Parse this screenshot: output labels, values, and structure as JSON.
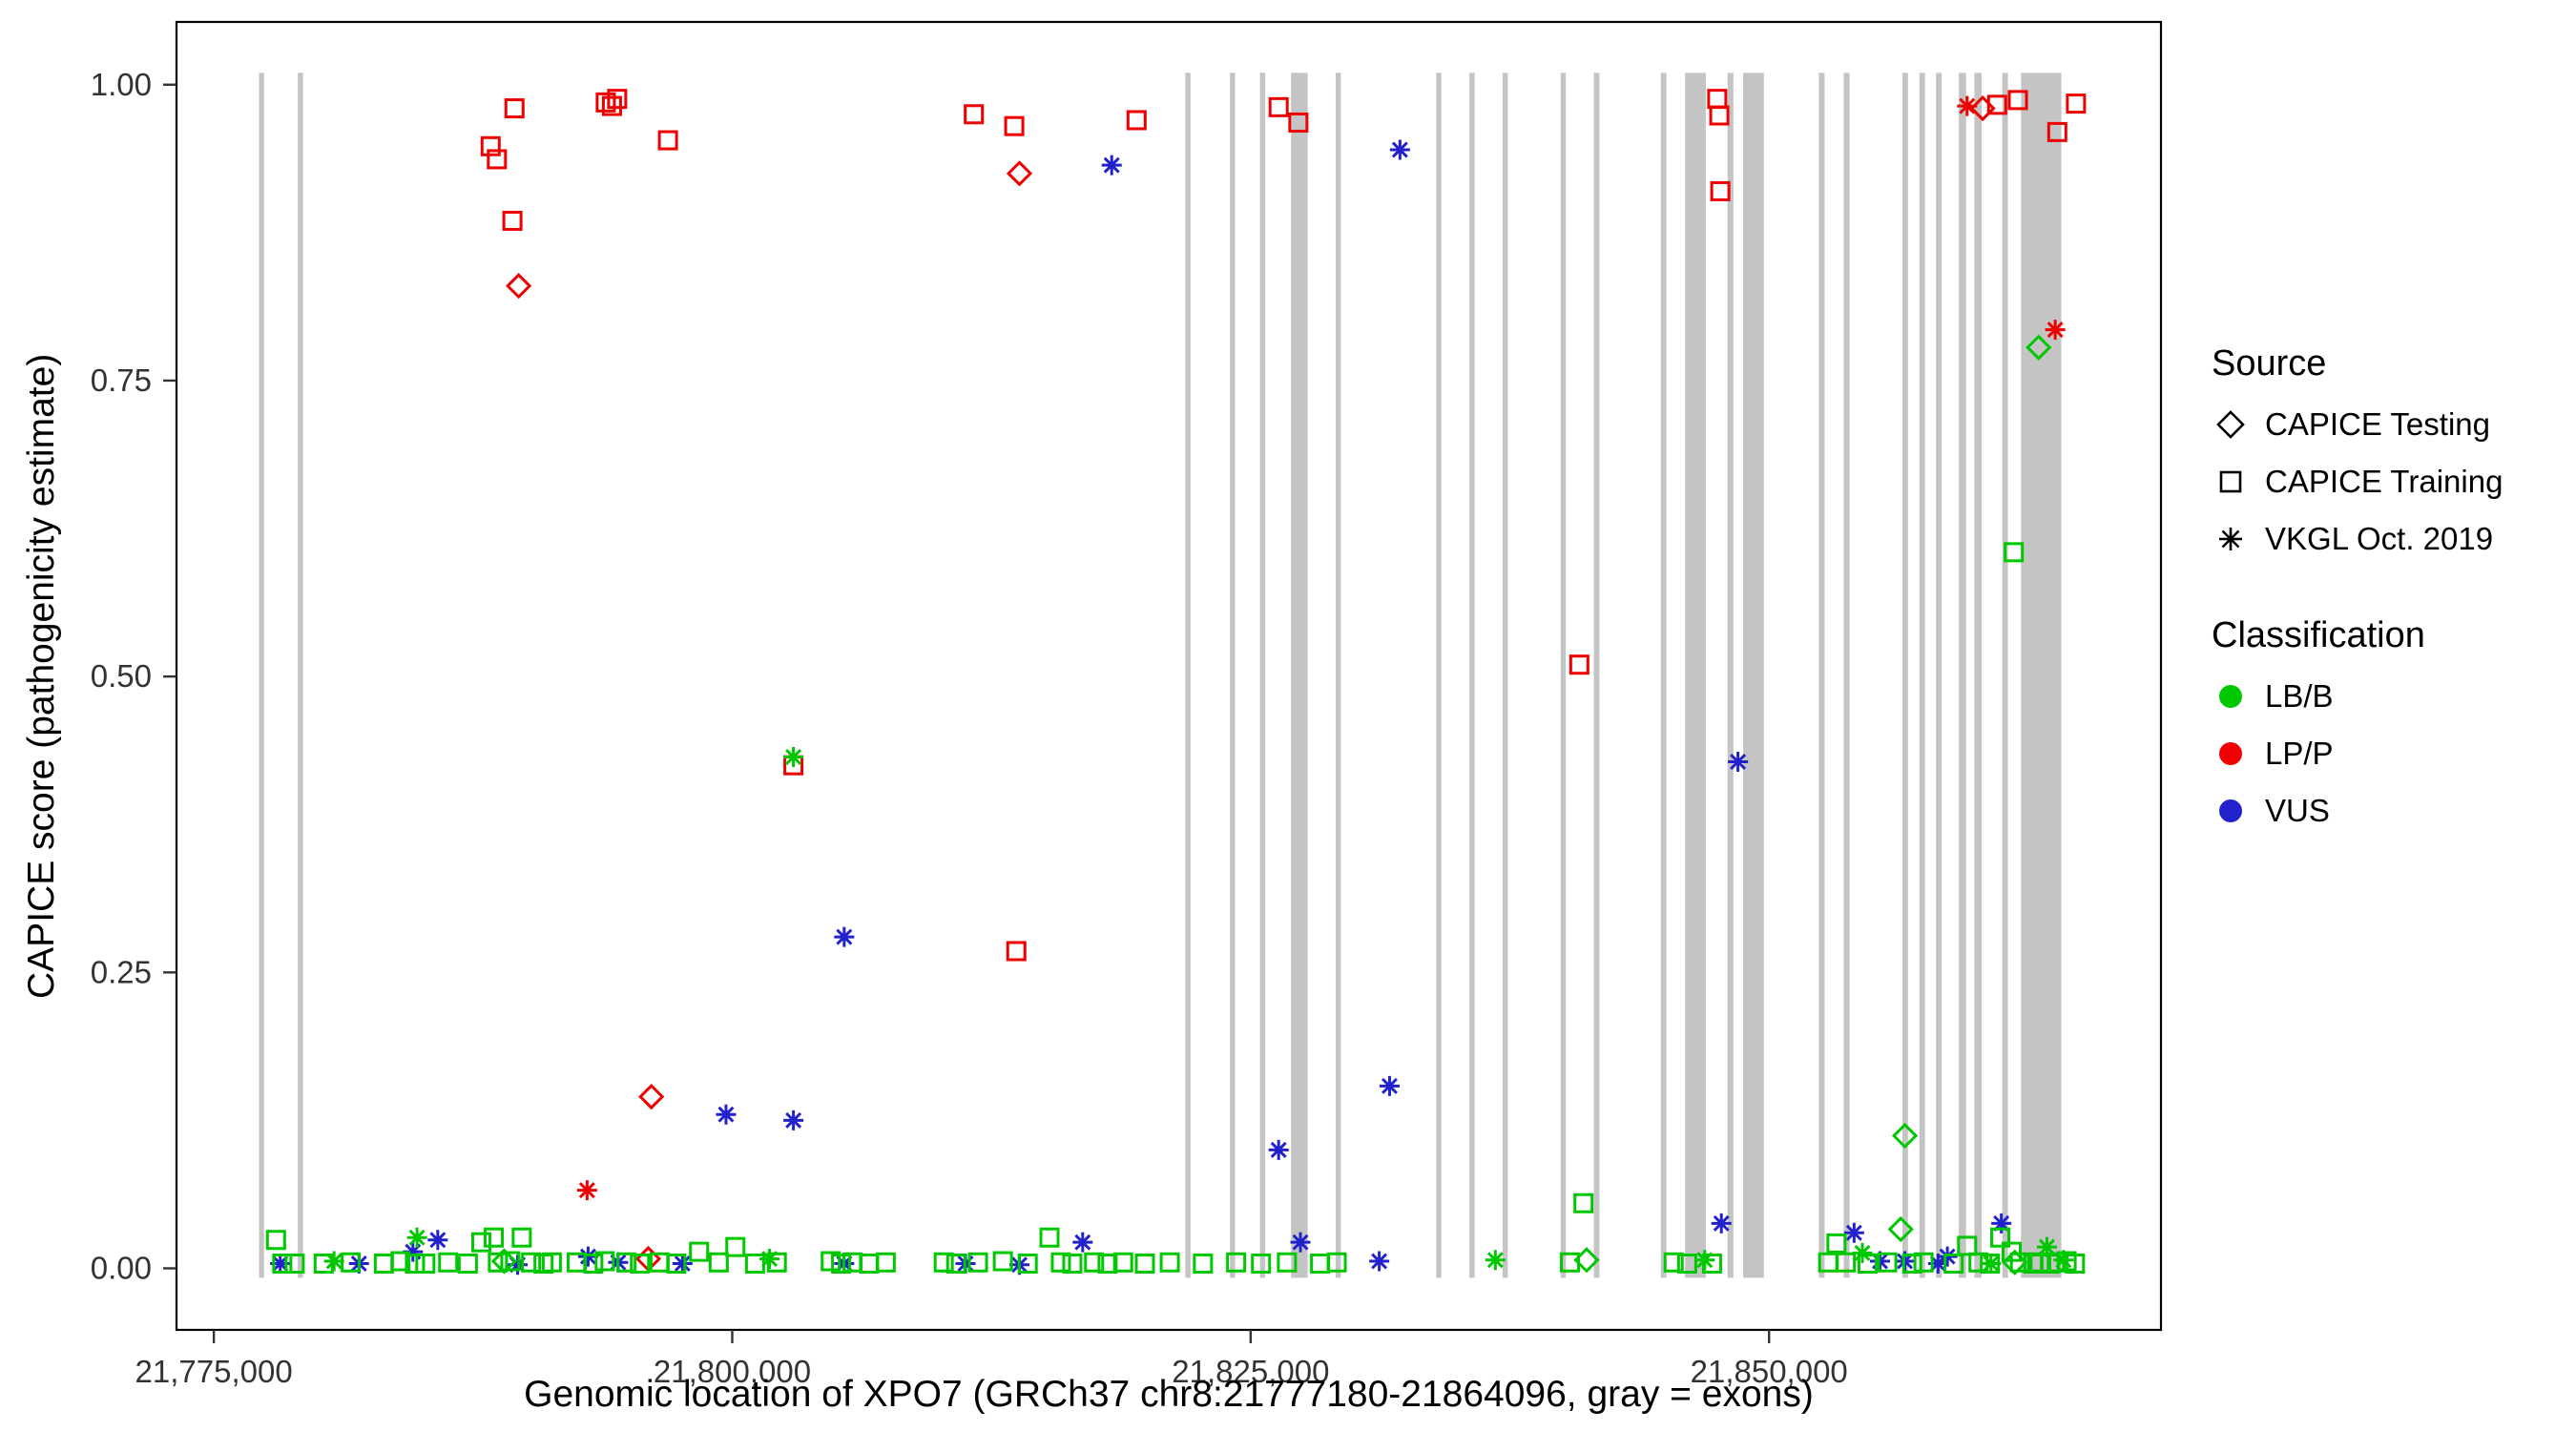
{
  "chart_data": {
    "type": "scatter",
    "title": "",
    "xlabel": "Genomic location of XPO7 (GRCh37 chr8:21777180-21864096, gray = exons)",
    "ylabel": "CAPICE score (pathogenicity estimate)",
    "xlim": [
      21773200,
      21868900
    ],
    "ylim": [
      -0.052,
      1.053
    ],
    "grid": false,
    "x_ticks": [
      {
        "value": 21775000,
        "label": "21,775,000"
      },
      {
        "value": 21800000,
        "label": "21,800,000"
      },
      {
        "value": 21825000,
        "label": "21,825,000"
      },
      {
        "value": 21850000,
        "label": "21,850,000"
      }
    ],
    "y_ticks": [
      {
        "value": 0.0,
        "label": "0.00"
      },
      {
        "value": 0.25,
        "label": "0.25"
      },
      {
        "value": 0.5,
        "label": "0.50"
      },
      {
        "value": 0.75,
        "label": "0.75"
      },
      {
        "value": 1.0,
        "label": "1.00"
      }
    ],
    "colors": {
      "exon": "#C4C4C4",
      "panel_border": "#000000",
      "tick": "#333333"
    },
    "exon_band": {
      "ymin": -0.008,
      "ymax": 1.01
    },
    "exons": [
      [
        21777180,
        21777420
      ],
      [
        21779050,
        21779300
      ],
      [
        21821850,
        21822100
      ],
      [
        21824000,
        21824250
      ],
      [
        21825450,
        21825700
      ],
      [
        21826950,
        21827750
      ],
      [
        21829100,
        21829350
      ],
      [
        21833950,
        21834200
      ],
      [
        21835550,
        21835800
      ],
      [
        21837150,
        21837400
      ],
      [
        21839950,
        21840200
      ],
      [
        21841550,
        21841820
      ],
      [
        21844780,
        21845050
      ],
      [
        21845950,
        21846950
      ],
      [
        21848000,
        21848280
      ],
      [
        21848750,
        21849750
      ],
      [
        21852400,
        21852680
      ],
      [
        21853600,
        21853880
      ],
      [
        21856430,
        21856700
      ],
      [
        21857250,
        21857520
      ],
      [
        21858050,
        21858320
      ],
      [
        21859150,
        21859500
      ],
      [
        21859900,
        21860250
      ],
      [
        21861250,
        21861520
      ],
      [
        21862150,
        21864096
      ]
    ],
    "legend": {
      "source": {
        "title": "Source",
        "items": [
          {
            "label": "CAPICE Testing",
            "shape": "diamond"
          },
          {
            "label": "CAPICE Training",
            "shape": "square"
          },
          {
            "label": "VKGL Oct. 2019",
            "shape": "asterisk"
          }
        ]
      },
      "classification": {
        "title": "Classification",
        "items": [
          {
            "label": "LB/B",
            "color": "#00C800"
          },
          {
            "label": "LP/P",
            "color": "#EE0000"
          },
          {
            "label": "VUS",
            "color": "#2222CC"
          }
        ]
      }
    },
    "point_format": [
      "genomic_position",
      "capice_score",
      "shape_by_source",
      "classification"
    ],
    "points": [
      [
        21788350,
        0.948,
        "square",
        "LP/P"
      ],
      [
        21788650,
        0.937,
        "square",
        "LP/P"
      ],
      [
        21789400,
        0.885,
        "square",
        "LP/P"
      ],
      [
        21789500,
        0.98,
        "square",
        "LP/P"
      ],
      [
        21793900,
        0.985,
        "square",
        "LP/P"
      ],
      [
        21794200,
        0.982,
        "square",
        "LP/P"
      ],
      [
        21794450,
        0.988,
        "square",
        "LP/P"
      ],
      [
        21796900,
        0.953,
        "square",
        "LP/P"
      ],
      [
        21811650,
        0.975,
        "square",
        "LP/P"
      ],
      [
        21813600,
        0.965,
        "square",
        "LP/P"
      ],
      [
        21819500,
        0.97,
        "square",
        "LP/P"
      ],
      [
        21826350,
        0.981,
        "square",
        "LP/P"
      ],
      [
        21827300,
        0.968,
        "square",
        "LP/P"
      ],
      [
        21847500,
        0.988,
        "square",
        "LP/P"
      ],
      [
        21847600,
        0.974,
        "square",
        "LP/P"
      ],
      [
        21847650,
        0.91,
        "square",
        "LP/P"
      ],
      [
        21840850,
        0.51,
        "square",
        "LP/P"
      ],
      [
        21813700,
        0.268,
        "square",
        "LP/P"
      ],
      [
        21802950,
        0.425,
        "square",
        "LP/P"
      ],
      [
        21861000,
        0.983,
        "square",
        "LP/P"
      ],
      [
        21862000,
        0.987,
        "square",
        "LP/P"
      ],
      [
        21863900,
        0.96,
        "square",
        "LP/P"
      ],
      [
        21864800,
        0.984,
        "square",
        "LP/P"
      ],
      [
        21789700,
        0.83,
        "diamond",
        "LP/P"
      ],
      [
        21813850,
        0.925,
        "diamond",
        "LP/P"
      ],
      [
        21796100,
        0.145,
        "diamond",
        "LP/P"
      ],
      [
        21795950,
        0.008,
        "diamond",
        "LP/P"
      ],
      [
        21860300,
        0.98,
        "diamond",
        "LP/P"
      ],
      [
        21793000,
        0.066,
        "asterisk",
        "LP/P"
      ],
      [
        21863800,
        0.793,
        "asterisk",
        "LP/P"
      ],
      [
        21859550,
        0.982,
        "asterisk",
        "LP/P"
      ],
      [
        21818300,
        0.932,
        "asterisk",
        "VUS"
      ],
      [
        21832200,
        0.945,
        "asterisk",
        "VUS"
      ],
      [
        21805400,
        0.28,
        "asterisk",
        "VUS"
      ],
      [
        21799700,
        0.13,
        "asterisk",
        "VUS"
      ],
      [
        21802950,
        0.125,
        "asterisk",
        "VUS"
      ],
      [
        21831700,
        0.154,
        "asterisk",
        "VUS"
      ],
      [
        21826350,
        0.1,
        "asterisk",
        "VUS"
      ],
      [
        21848500,
        0.428,
        "asterisk",
        "VUS"
      ],
      [
        21847700,
        0.038,
        "asterisk",
        "VUS"
      ],
      [
        21827400,
        0.022,
        "asterisk",
        "VUS"
      ],
      [
        21831200,
        0.006,
        "asterisk",
        "VUS"
      ],
      [
        21854100,
        0.03,
        "asterisk",
        "VUS"
      ],
      [
        21861200,
        0.038,
        "asterisk",
        "VUS"
      ],
      [
        21858600,
        0.01,
        "asterisk",
        "VUS"
      ],
      [
        21778200,
        0.004,
        "asterisk",
        "VUS"
      ],
      [
        21782000,
        0.004,
        "asterisk",
        "VUS"
      ],
      [
        21784600,
        0.014,
        "asterisk",
        "VUS"
      ],
      [
        21785800,
        0.024,
        "asterisk",
        "VUS"
      ],
      [
        21789650,
        0.003,
        "asterisk",
        "VUS"
      ],
      [
        21793050,
        0.01,
        "asterisk",
        "VUS"
      ],
      [
        21794500,
        0.005,
        "asterisk",
        "VUS"
      ],
      [
        21797600,
        0.004,
        "asterisk",
        "VUS"
      ],
      [
        21805400,
        0.004,
        "asterisk",
        "VUS"
      ],
      [
        21811250,
        0.004,
        "asterisk",
        "VUS"
      ],
      [
        21813850,
        0.003,
        "asterisk",
        "VUS"
      ],
      [
        21816900,
        0.022,
        "asterisk",
        "VUS"
      ],
      [
        21855350,
        0.006,
        "asterisk",
        "VUS"
      ],
      [
        21856550,
        0.006,
        "asterisk",
        "VUS"
      ],
      [
        21858150,
        0.004,
        "asterisk",
        "VUS"
      ],
      [
        21802950,
        0.432,
        "asterisk",
        "LB/B"
      ],
      [
        21784800,
        0.026,
        "asterisk",
        "LB/B"
      ],
      [
        21780800,
        0.006,
        "asterisk",
        "LB/B"
      ],
      [
        21801800,
        0.008,
        "asterisk",
        "LB/B"
      ],
      [
        21836800,
        0.007,
        "asterisk",
        "LB/B"
      ],
      [
        21846900,
        0.007,
        "asterisk",
        "LB/B"
      ],
      [
        21854500,
        0.013,
        "asterisk",
        "LB/B"
      ],
      [
        21863400,
        0.018,
        "asterisk",
        "LB/B"
      ],
      [
        21864200,
        0.007,
        "asterisk",
        "LB/B"
      ],
      [
        21860700,
        0.004,
        "asterisk",
        "LB/B"
      ],
      [
        21863000,
        0.778,
        "diamond",
        "LB/B"
      ],
      [
        21856550,
        0.112,
        "diamond",
        "LB/B"
      ],
      [
        21856350,
        0.033,
        "diamond",
        "LB/B"
      ],
      [
        21841200,
        0.007,
        "diamond",
        "LB/B"
      ],
      [
        21789000,
        0.006,
        "diamond",
        "LB/B"
      ],
      [
        21861850,
        0.005,
        "diamond",
        "LB/B"
      ],
      [
        21861800,
        0.605,
        "square",
        "LB/B"
      ],
      [
        21841050,
        0.055,
        "square",
        "LB/B"
      ],
      [
        21778000,
        0.024,
        "square",
        "LB/B"
      ],
      [
        21778300,
        0.004,
        "square",
        "LB/B"
      ],
      [
        21778900,
        0.004,
        "square",
        "LB/B"
      ],
      [
        21780300,
        0.004,
        "square",
        "LB/B"
      ],
      [
        21781600,
        0.005,
        "square",
        "LB/B"
      ],
      [
        21783200,
        0.004,
        "square",
        "LB/B"
      ],
      [
        21784000,
        0.006,
        "square",
        "LB/B"
      ],
      [
        21784700,
        0.004,
        "square",
        "LB/B"
      ],
      [
        21785200,
        0.004,
        "square",
        "LB/B"
      ],
      [
        21786300,
        0.005,
        "square",
        "LB/B"
      ],
      [
        21787250,
        0.004,
        "square",
        "LB/B"
      ],
      [
        21787900,
        0.022,
        "square",
        "LB/B"
      ],
      [
        21788500,
        0.026,
        "square",
        "LB/B"
      ],
      [
        21788700,
        0.005,
        "square",
        "LB/B"
      ],
      [
        21789300,
        0.006,
        "square",
        "LB/B"
      ],
      [
        21789850,
        0.026,
        "square",
        "LB/B"
      ],
      [
        21790300,
        0.005,
        "square",
        "LB/B"
      ],
      [
        21790900,
        0.004,
        "square",
        "LB/B"
      ],
      [
        21791300,
        0.005,
        "square",
        "LB/B"
      ],
      [
        21792500,
        0.005,
        "square",
        "LB/B"
      ],
      [
        21793300,
        0.004,
        "square",
        "LB/B"
      ],
      [
        21793850,
        0.006,
        "square",
        "LB/B"
      ],
      [
        21794900,
        0.005,
        "square",
        "LB/B"
      ],
      [
        21795550,
        0.004,
        "square",
        "LB/B"
      ],
      [
        21796500,
        0.005,
        "square",
        "LB/B"
      ],
      [
        21797300,
        0.004,
        "square",
        "LB/B"
      ],
      [
        21798400,
        0.014,
        "square",
        "LB/B"
      ],
      [
        21799350,
        0.005,
        "square",
        "LB/B"
      ],
      [
        21800150,
        0.018,
        "square",
        "LB/B"
      ],
      [
        21801100,
        0.004,
        "square",
        "LB/B"
      ],
      [
        21802150,
        0.005,
        "square",
        "LB/B"
      ],
      [
        21804750,
        0.006,
        "square",
        "LB/B"
      ],
      [
        21805250,
        0.004,
        "square",
        "LB/B"
      ],
      [
        21805800,
        0.005,
        "square",
        "LB/B"
      ],
      [
        21806600,
        0.004,
        "square",
        "LB/B"
      ],
      [
        21807400,
        0.005,
        "square",
        "LB/B"
      ],
      [
        21810200,
        0.005,
        "square",
        "LB/B"
      ],
      [
        21810800,
        0.004,
        "square",
        "LB/B"
      ],
      [
        21811850,
        0.005,
        "square",
        "LB/B"
      ],
      [
        21813050,
        0.006,
        "square",
        "LB/B"
      ],
      [
        21814250,
        0.004,
        "square",
        "LB/B"
      ],
      [
        21815300,
        0.026,
        "square",
        "LB/B"
      ],
      [
        21815850,
        0.005,
        "square",
        "LB/B"
      ],
      [
        21816400,
        0.004,
        "square",
        "LB/B"
      ],
      [
        21817450,
        0.005,
        "square",
        "LB/B"
      ],
      [
        21818100,
        0.004,
        "square",
        "LB/B"
      ],
      [
        21818850,
        0.005,
        "square",
        "LB/B"
      ],
      [
        21819900,
        0.004,
        "square",
        "LB/B"
      ],
      [
        21821100,
        0.005,
        "square",
        "LB/B"
      ],
      [
        21822700,
        0.004,
        "square",
        "LB/B"
      ],
      [
        21824300,
        0.005,
        "square",
        "LB/B"
      ],
      [
        21825500,
        0.004,
        "square",
        "LB/B"
      ],
      [
        21826750,
        0.005,
        "square",
        "LB/B"
      ],
      [
        21828350,
        0.004,
        "square",
        "LB/B"
      ],
      [
        21829150,
        0.005,
        "square",
        "LB/B"
      ],
      [
        21840400,
        0.005,
        "square",
        "LB/B"
      ],
      [
        21845400,
        0.005,
        "square",
        "LB/B"
      ],
      [
        21846050,
        0.004,
        "square",
        "LB/B"
      ],
      [
        21847250,
        0.004,
        "square",
        "LB/B"
      ],
      [
        21852850,
        0.005,
        "square",
        "LB/B"
      ],
      [
        21853250,
        0.021,
        "square",
        "LB/B"
      ],
      [
        21853700,
        0.005,
        "square",
        "LB/B"
      ],
      [
        21854750,
        0.004,
        "square",
        "LB/B"
      ],
      [
        21855700,
        0.005,
        "square",
        "LB/B"
      ],
      [
        21856900,
        0.004,
        "square",
        "LB/B"
      ],
      [
        21857450,
        0.005,
        "square",
        "LB/B"
      ],
      [
        21858900,
        0.004,
        "square",
        "LB/B"
      ],
      [
        21859550,
        0.019,
        "square",
        "LB/B"
      ],
      [
        21860100,
        0.005,
        "square",
        "LB/B"
      ],
      [
        21860650,
        0.004,
        "square",
        "LB/B"
      ],
      [
        21861150,
        0.026,
        "square",
        "LB/B"
      ],
      [
        21861700,
        0.014,
        "square",
        "LB/B"
      ],
      [
        21862100,
        0.005,
        "square",
        "LB/B"
      ],
      [
        21862750,
        0.004,
        "square",
        "LB/B"
      ],
      [
        21863050,
        0.005,
        "square",
        "LB/B"
      ],
      [
        21863550,
        0.004,
        "square",
        "LB/B"
      ],
      [
        21863950,
        0.005,
        "square",
        "LB/B"
      ],
      [
        21864350,
        0.006,
        "square",
        "LB/B"
      ],
      [
        21864750,
        0.004,
        "square",
        "LB/B"
      ]
    ]
  }
}
